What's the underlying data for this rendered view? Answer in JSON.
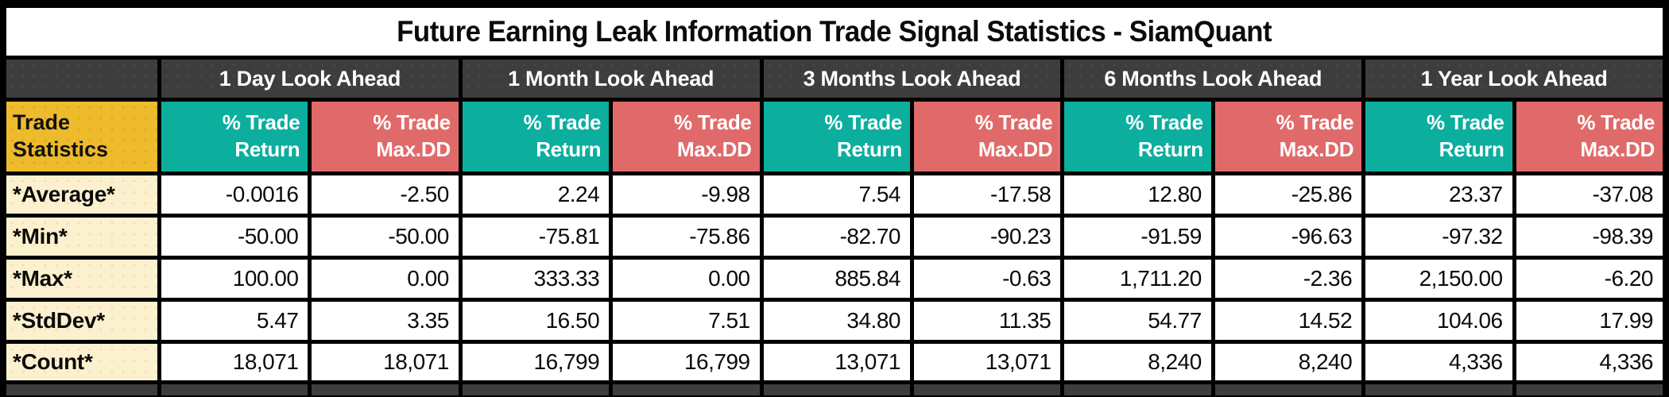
{
  "title": "Future Earning Leak Information Trade Signal Statistics - SiamQuant",
  "colors": {
    "background": "#000000",
    "title_bg": "#ffffff",
    "group_header_bg": "#3d3d3d",
    "corner_bg": "#edbb2b",
    "return_col_bg": "#0cae9e",
    "maxdd_col_bg": "#e06a6a",
    "row_label_bg": "#fcf1ce",
    "data_cell_bg": "#ffffff",
    "text_dark": "#0b0b0b",
    "text_light": "#ffffff"
  },
  "chart_data": {
    "type": "table",
    "title": "Future Earning Leak Information Trade Signal Statistics - SiamQuant",
    "corner_header": "Trade\nStatistics",
    "column_groups": [
      "1 Day Look Ahead",
      "1 Month Look Ahead",
      "3 Months Look Ahead",
      "6 Months Look Ahead",
      "1 Year Look Ahead"
    ],
    "subcolumns_per_group": [
      "% Trade\nReturn",
      "% Trade\nMax.DD"
    ],
    "rows": [
      {
        "label": "*Average*",
        "values": [
          "-0.0016",
          "-2.50",
          "2.24",
          "-9.98",
          "7.54",
          "-17.58",
          "12.80",
          "-25.86",
          "23.37",
          "-37.08"
        ]
      },
      {
        "label": "*Min*",
        "values": [
          "-50.00",
          "-50.00",
          "-75.81",
          "-75.86",
          "-82.70",
          "-90.23",
          "-91.59",
          "-96.63",
          "-97.32",
          "-98.39"
        ]
      },
      {
        "label": "*Max*",
        "values": [
          "100.00",
          "0.00",
          "333.33",
          "0.00",
          "885.84",
          "-0.63",
          "1,711.20",
          "-2.36",
          "2,150.00",
          "-6.20"
        ]
      },
      {
        "label": "*StdDev*",
        "values": [
          "5.47",
          "3.35",
          "16.50",
          "7.51",
          "34.80",
          "11.35",
          "54.77",
          "14.52",
          "104.06",
          "17.99"
        ]
      },
      {
        "label": "*Count*",
        "values": [
          "18,071",
          "18,071",
          "16,799",
          "16,799",
          "13,071",
          "13,071",
          "8,240",
          "8,240",
          "4,336",
          "4,336"
        ]
      }
    ]
  }
}
